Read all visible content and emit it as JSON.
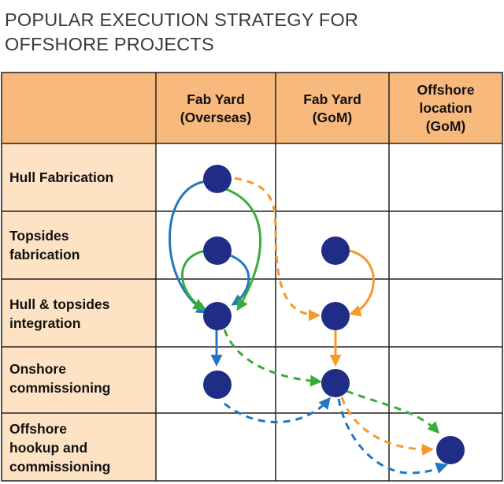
{
  "title": "POPULAR EXECUTION STRATEGY FOR\nOFFSHORE PROJECTS",
  "columns": [
    {
      "label": "Fab Yard\n(Overseas)"
    },
    {
      "label": "Fab Yard\n(GoM)"
    },
    {
      "label": "Offshore\nlocation\n(GoM)"
    }
  ],
  "rows": [
    {
      "label": "Hull Fabrication"
    },
    {
      "label": "Topsides\nfabrication"
    },
    {
      "label": "Hull & topsides\nintegration"
    },
    {
      "label": "Onshore\ncommissioning"
    },
    {
      "label": "Offshore\nhookup and\ncommissioning"
    }
  ],
  "colors": {
    "header_bg": "#f7b97c",
    "rowlabel_bg": "#fde3c4",
    "node": "#1f2d87",
    "blue_path": "#1f78c1",
    "green_path": "#3aac3a",
    "orange_path": "#f39a2a",
    "grid_line": "#222222"
  },
  "nodes": [
    {
      "id": "hull-overseas",
      "col": 0,
      "row": 0
    },
    {
      "id": "topsides-overseas",
      "col": 0,
      "row": 1
    },
    {
      "id": "topsides-gom",
      "col": 1,
      "row": 1
    },
    {
      "id": "integration-overseas",
      "col": 0,
      "row": 2
    },
    {
      "id": "integration-gom",
      "col": 1,
      "row": 2
    },
    {
      "id": "commissioning-overseas",
      "col": 0,
      "row": 3
    },
    {
      "id": "commissioning-gom",
      "col": 1,
      "row": 3
    },
    {
      "id": "hookup-offshore",
      "col": 2,
      "row": 4
    }
  ],
  "paths": [
    {
      "id": "blue-hull-to-integration",
      "color": "blue",
      "style": "solid"
    },
    {
      "id": "blue-topsides-to-integration",
      "color": "blue",
      "style": "solid"
    },
    {
      "id": "blue-integration-to-commissioning",
      "color": "blue",
      "style": "solid"
    },
    {
      "id": "blue-commissioning-to-gom",
      "color": "blue",
      "style": "dashed"
    },
    {
      "id": "blue-gom-to-hookup",
      "color": "blue",
      "style": "dashed"
    },
    {
      "id": "green-hull-to-integration",
      "color": "green",
      "style": "solid"
    },
    {
      "id": "green-topsides-to-integration",
      "color": "green",
      "style": "solid"
    },
    {
      "id": "green-integration-to-gom-commissioning",
      "color": "green",
      "style": "dashed"
    },
    {
      "id": "green-gom-to-hookup",
      "color": "green",
      "style": "dashed"
    },
    {
      "id": "orange-hull-to-gom-integration",
      "color": "orange",
      "style": "dashed"
    },
    {
      "id": "orange-topsides-to-integration",
      "color": "orange",
      "style": "solid"
    },
    {
      "id": "orange-integration-to-commissioning",
      "color": "orange",
      "style": "solid"
    },
    {
      "id": "orange-gom-to-hookup",
      "color": "orange",
      "style": "dashed"
    }
  ]
}
